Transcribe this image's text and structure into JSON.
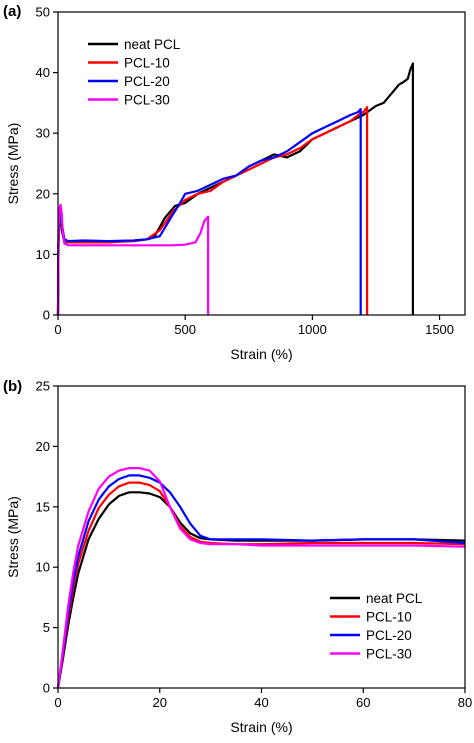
{
  "chart_data": [
    {
      "type": "line",
      "panel_label": "(a)",
      "xlabel": "Strain (%)",
      "ylabel": "Stress (MPa)",
      "xlim": [
        0,
        1600
      ],
      "ylim": [
        0,
        50
      ],
      "xticks": [
        0,
        500,
        1000,
        1500
      ],
      "yticks": [
        0,
        10,
        20,
        30,
        40,
        50
      ],
      "legend_position": "top-left",
      "grid": false,
      "series": [
        {
          "name": "neat PCL",
          "color": "#000000",
          "x": [
            0,
            2,
            5,
            8,
            15,
            25,
            40,
            100,
            200,
            300,
            350,
            380,
            420,
            460,
            500,
            550,
            600,
            650,
            700,
            750,
            800,
            850,
            900,
            950,
            1000,
            1050,
            1100,
            1150,
            1200,
            1250,
            1280,
            1300,
            1320,
            1340,
            1360,
            1375,
            1385,
            1390,
            1395,
            1395
          ],
          "y": [
            0,
            11,
            16,
            17,
            14,
            12,
            12,
            12,
            12,
            12.3,
            12.5,
            13,
            16,
            18,
            18.5,
            20,
            21,
            22,
            23,
            24.5,
            25.5,
            26.5,
            26,
            27,
            29,
            30,
            31,
            32,
            33,
            34.5,
            35,
            36,
            37,
            38,
            38.5,
            39,
            40.5,
            41,
            41.5,
            0
          ]
        },
        {
          "name": "PCL-10",
          "color": "#ff0000",
          "x": [
            0,
            2,
            5,
            10,
            15,
            25,
            40,
            100,
            200,
            300,
            350,
            400,
            450,
            500,
            550,
            600,
            650,
            700,
            750,
            800,
            850,
            900,
            950,
            1000,
            1050,
            1100,
            1150,
            1180,
            1200,
            1210,
            1215,
            1215
          ],
          "y": [
            0,
            12,
            17,
            18,
            15,
            12.3,
            12,
            12,
            12,
            12.2,
            12.5,
            14,
            17,
            19,
            20,
            20.5,
            22,
            23,
            24,
            25,
            26,
            26.5,
            27.5,
            29,
            30,
            31,
            32,
            33,
            33.5,
            34,
            34.3,
            0
          ]
        },
        {
          "name": "PCL-20",
          "color": "#0000ff",
          "x": [
            0,
            2,
            5,
            10,
            15,
            25,
            40,
            100,
            200,
            300,
            350,
            400,
            450,
            480,
            500,
            550,
            600,
            650,
            700,
            750,
            800,
            850,
            900,
            950,
            1000,
            1050,
            1100,
            1150,
            1180,
            1190,
            1190
          ],
          "y": [
            0,
            12.5,
            17.5,
            18,
            15,
            12.5,
            12.2,
            12.3,
            12.2,
            12.3,
            12.5,
            13,
            16.5,
            18.5,
            20,
            20.5,
            21.5,
            22.5,
            23,
            24.5,
            25.5,
            26,
            27,
            28.5,
            30,
            31,
            32,
            33,
            33.5,
            34,
            0
          ]
        },
        {
          "name": "PCL-30",
          "color": "#ff00ff",
          "x": [
            0,
            2,
            5,
            10,
            14,
            18,
            25,
            40,
            100,
            200,
            300,
            400,
            450,
            500,
            540,
            560,
            575,
            585,
            590,
            590
          ],
          "y": [
            0,
            14,
            17.5,
            18.2,
            17,
            14,
            11.8,
            11.5,
            11.5,
            11.5,
            11.5,
            11.5,
            11.5,
            11.6,
            12,
            13.5,
            15.5,
            16,
            16.2,
            0
          ]
        }
      ]
    },
    {
      "type": "line",
      "panel_label": "(b)",
      "xlabel": "Strain (%)",
      "ylabel": "Stress (MPa)",
      "xlim": [
        0,
        80
      ],
      "ylim": [
        0,
        25
      ],
      "xticks": [
        0,
        20,
        40,
        60,
        80
      ],
      "yticks": [
        0,
        5,
        10,
        15,
        20,
        25
      ],
      "legend_position": "bottom-right",
      "grid": false,
      "series": [
        {
          "name": "neat PCL",
          "color": "#000000",
          "x": [
            0,
            1,
            2,
            3,
            4,
            6,
            8,
            10,
            12,
            14,
            16,
            18,
            20,
            22,
            24,
            26,
            28,
            30,
            35,
            40,
            50,
            60,
            70,
            80
          ],
          "y": [
            0,
            2.5,
            5.2,
            7.5,
            9.5,
            12.3,
            14,
            15.2,
            15.9,
            16.2,
            16.2,
            16.1,
            15.8,
            15,
            13.7,
            12.8,
            12.4,
            12.3,
            12.2,
            12.2,
            12.2,
            12.3,
            12.3,
            12.2
          ]
        },
        {
          "name": "PCL-10",
          "color": "#ff0000",
          "x": [
            0,
            1,
            2,
            3,
            4,
            6,
            8,
            10,
            12,
            14,
            16,
            18,
            20,
            22,
            24,
            26,
            28,
            30,
            35,
            40,
            50,
            60,
            70,
            80
          ],
          "y": [
            0,
            2.8,
            5.8,
            8.3,
            10.3,
            13,
            14.9,
            16,
            16.7,
            17,
            17,
            16.8,
            16.3,
            15,
            13.4,
            12.5,
            12.1,
            12,
            11.9,
            11.9,
            12,
            12,
            12,
            11.9
          ]
        },
        {
          "name": "PCL-20",
          "color": "#0000ff",
          "x": [
            0,
            1,
            2,
            3,
            4,
            6,
            8,
            10,
            12,
            14,
            16,
            18,
            20,
            22,
            24,
            26,
            28,
            30,
            35,
            40,
            50,
            60,
            70,
            80
          ],
          "y": [
            0,
            3,
            6.2,
            8.8,
            10.9,
            13.8,
            15.6,
            16.7,
            17.3,
            17.6,
            17.6,
            17.4,
            17,
            16.2,
            15,
            13.6,
            12.6,
            12.3,
            12.3,
            12.3,
            12.2,
            12.3,
            12.3,
            12
          ]
        },
        {
          "name": "PCL-30",
          "color": "#ff00ff",
          "x": [
            0,
            1,
            2,
            3,
            4,
            6,
            8,
            10,
            12,
            14,
            16,
            18,
            20,
            22,
            24,
            26,
            28,
            30,
            35,
            40,
            50,
            60,
            70,
            80
          ],
          "y": [
            0,
            3.3,
            6.8,
            9.6,
            11.8,
            14.6,
            16.5,
            17.5,
            18,
            18.2,
            18.2,
            18,
            17.1,
            15,
            13.2,
            12.3,
            12,
            11.9,
            11.9,
            11.8,
            11.8,
            11.8,
            11.8,
            11.7
          ]
        }
      ]
    }
  ]
}
